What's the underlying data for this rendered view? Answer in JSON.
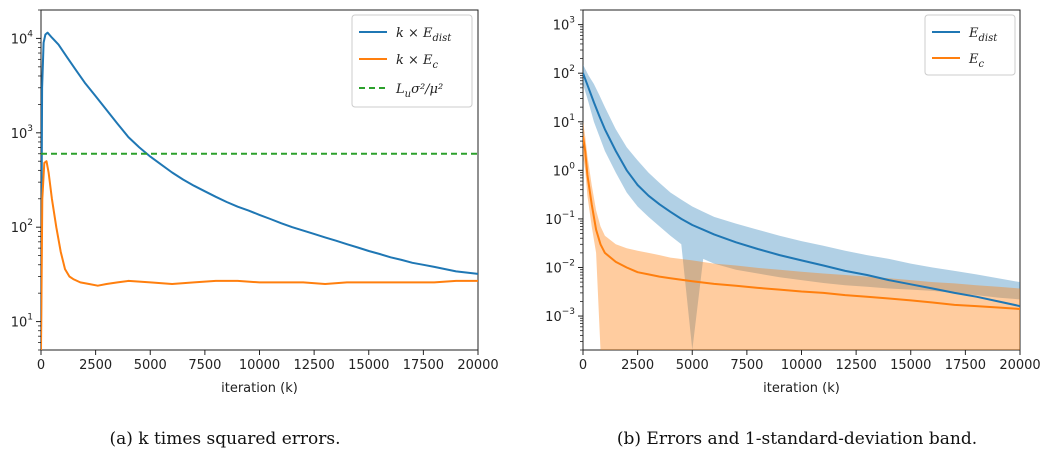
{
  "chart_data": [
    {
      "type": "line",
      "panel": "a",
      "caption": "(a) k times squared errors.",
      "xlabel": "iteration (k)",
      "ylabel": "",
      "yscale": "log",
      "xlim": [
        0,
        20000
      ],
      "ylim": [
        5,
        20000
      ],
      "x_ticks": [
        0,
        2500,
        5000,
        7500,
        10000,
        12500,
        15000,
        17500,
        20000
      ],
      "x_tick_labels": [
        "0",
        "2500",
        "5000",
        "7500",
        "10000",
        "12500",
        "15000",
        "17500",
        "20000"
      ],
      "y_ticks": [
        10,
        100,
        1000,
        10000
      ],
      "y_tick_labels": [
        {
          "base": "10",
          "exp": "1"
        },
        {
          "base": "10",
          "exp": "2"
        },
        {
          "base": "10",
          "exp": "3"
        },
        {
          "base": "10",
          "exp": "4"
        }
      ],
      "legend_position": "top-right",
      "series": [
        {
          "name": "k × E_dist",
          "legend_main": "k × E",
          "legend_sub": "dist",
          "color": "#1f77b4",
          "style": "solid",
          "x": [
            0,
            50,
            120,
            200,
            300,
            500,
            800,
            1200,
            1600,
            2000,
            2500,
            3000,
            3500,
            4000,
            4500,
            5000,
            5500,
            6000,
            6500,
            7000,
            7500,
            8000,
            8500,
            9000,
            9500,
            10000,
            10500,
            11000,
            11500,
            12000,
            12500,
            13000,
            13500,
            14000,
            14500,
            15000,
            15500,
            16000,
            16500,
            17000,
            17500,
            18000,
            18500,
            19000,
            19500,
            20000
          ],
          "y": [
            7,
            3000,
            9000,
            11000,
            11500,
            10200,
            8600,
            6300,
            4600,
            3400,
            2450,
            1750,
            1250,
            900,
            700,
            560,
            460,
            380,
            320,
            275,
            240,
            210,
            185,
            165,
            150,
            135,
            122,
            110,
            100,
            92,
            85,
            78,
            72,
            66,
            61,
            56,
            52,
            48,
            45,
            42,
            40,
            38,
            36,
            34,
            33,
            32
          ]
        },
        {
          "name": "k × E_c",
          "legend_main": "k × E",
          "legend_sub": "c",
          "color": "#ff7f0e",
          "style": "solid",
          "x": [
            0,
            60,
            150,
            250,
            350,
            500,
            700,
            900,
            1100,
            1300,
            1500,
            1800,
            2200,
            2600,
            3000,
            3500,
            4000,
            5000,
            6000,
            7000,
            8000,
            9000,
            10000,
            11000,
            12000,
            13000,
            14000,
            15000,
            16000,
            17000,
            18000,
            19000,
            20000
          ],
          "y": [
            5,
            200,
            480,
            500,
            380,
            200,
            100,
            55,
            36,
            30,
            28,
            26,
            25,
            24,
            25,
            26,
            27,
            26,
            25,
            26,
            27,
            27,
            26,
            26,
            26,
            25,
            26,
            26,
            26,
            26,
            26,
            27,
            27
          ]
        },
        {
          "name": "L_u σ²/μ²",
          "legend_main": "L",
          "legend_sub": "u",
          "legend_rest": "σ²/μ²",
          "color": "#2ca02c",
          "style": "dashed",
          "x": [
            0,
            20000
          ],
          "y": [
            600,
            600
          ]
        }
      ]
    },
    {
      "type": "line",
      "panel": "b",
      "caption": "(b) Errors and 1-standard-deviation band.",
      "xlabel": "iteration (k)",
      "ylabel": "",
      "yscale": "log",
      "xlim": [
        0,
        20000
      ],
      "ylim": [
        0.0002,
        2000
      ],
      "x_ticks": [
        0,
        2500,
        5000,
        7500,
        10000,
        12500,
        15000,
        17500,
        20000
      ],
      "x_tick_labels": [
        "0",
        "2500",
        "5000",
        "7500",
        "10000",
        "12500",
        "15000",
        "17500",
        "20000"
      ],
      "y_ticks": [
        0.001,
        0.01,
        0.1,
        1,
        10,
        100,
        1000
      ],
      "y_tick_labels": [
        {
          "base": "10",
          "exp": "−3"
        },
        {
          "base": "10",
          "exp": "−2"
        },
        {
          "base": "10",
          "exp": "−1"
        },
        {
          "base": "10",
          "exp": "0"
        },
        {
          "base": "10",
          "exp": "1"
        },
        {
          "base": "10",
          "exp": "2"
        },
        {
          "base": "10",
          "exp": "3"
        }
      ],
      "legend_position": "top-right",
      "series": [
        {
          "name": "E_dist",
          "legend_main": "E",
          "legend_sub": "dist",
          "color": "#1f77b4",
          "style": "solid",
          "x": [
            0,
            250,
            500,
            750,
            1000,
            1500,
            2000,
            2500,
            3000,
            3500,
            4000,
            4500,
            5000,
            5500,
            6000,
            7000,
            8000,
            9000,
            10000,
            11000,
            12000,
            13000,
            14000,
            15000,
            16000,
            17000,
            18000,
            19000,
            20000
          ],
          "y": [
            100,
            50,
            25,
            13,
            7,
            2.5,
            1.0,
            0.5,
            0.3,
            0.2,
            0.14,
            0.1,
            0.075,
            0.06,
            0.048,
            0.033,
            0.024,
            0.018,
            0.014,
            0.011,
            0.0085,
            0.007,
            0.0055,
            0.0045,
            0.0037,
            0.003,
            0.0025,
            0.002,
            0.0016
          ],
          "band_lower": [
            60,
            25,
            10,
            5,
            2.5,
            0.9,
            0.35,
            0.18,
            0.11,
            0.07,
            0.045,
            0.03,
            0.0002,
            0.015,
            0.012,
            0.009,
            0.0075,
            0.0063,
            0.0055,
            0.0048,
            0.0043,
            0.004,
            0.0037,
            0.0035,
            0.0033,
            0.003,
            0.0027,
            0.0024,
            0.0022
          ],
          "band_upper": [
            150,
            90,
            60,
            35,
            20,
            7,
            3.0,
            1.6,
            0.9,
            0.55,
            0.35,
            0.25,
            0.18,
            0.14,
            0.11,
            0.08,
            0.06,
            0.045,
            0.035,
            0.028,
            0.022,
            0.018,
            0.015,
            0.012,
            0.01,
            0.0085,
            0.0072,
            0.006,
            0.005
          ]
        },
        {
          "name": "E_c",
          "legend_main": "E",
          "legend_sub": "c",
          "color": "#ff7f0e",
          "style": "solid",
          "x": [
            0,
            100,
            200,
            400,
            600,
            800,
            1000,
            1500,
            2000,
            2500,
            3000,
            3500,
            4000,
            5000,
            6000,
            7000,
            8000,
            9000,
            10000,
            11000,
            12000,
            13000,
            14000,
            15000,
            16000,
            17000,
            18000,
            19000,
            20000
          ],
          "y": [
            5,
            2.5,
            0.8,
            0.2,
            0.06,
            0.03,
            0.02,
            0.013,
            0.01,
            0.008,
            0.0072,
            0.0065,
            0.006,
            0.0052,
            0.0046,
            0.0042,
            0.0038,
            0.0035,
            0.0032,
            0.003,
            0.0027,
            0.0025,
            0.0023,
            0.0021,
            0.0019,
            0.0017,
            0.0016,
            0.0015,
            0.0014
          ],
          "band_lower": [
            2,
            1,
            0.3,
            0.07,
            0.02,
            0.0002,
            0.0002,
            0.0002,
            0.0002,
            0.0002,
            0.0002,
            0.0002,
            0.0002,
            0.0002,
            0.0002,
            0.0002,
            0.0002,
            0.0002,
            0.0002,
            0.0002,
            0.0002,
            0.0002,
            0.0002,
            0.0002,
            0.0002,
            0.0002,
            0.0002,
            0.0002,
            0.0002
          ],
          "band_upper": [
            10,
            5,
            2,
            0.5,
            0.15,
            0.07,
            0.045,
            0.03,
            0.025,
            0.022,
            0.02,
            0.018,
            0.016,
            0.014,
            0.012,
            0.011,
            0.0098,
            0.009,
            0.0082,
            0.0075,
            0.007,
            0.0065,
            0.006,
            0.0055,
            0.005,
            0.0047,
            0.0043,
            0.004,
            0.0037
          ]
        }
      ]
    }
  ],
  "legend_extra": "σ²/μ²"
}
